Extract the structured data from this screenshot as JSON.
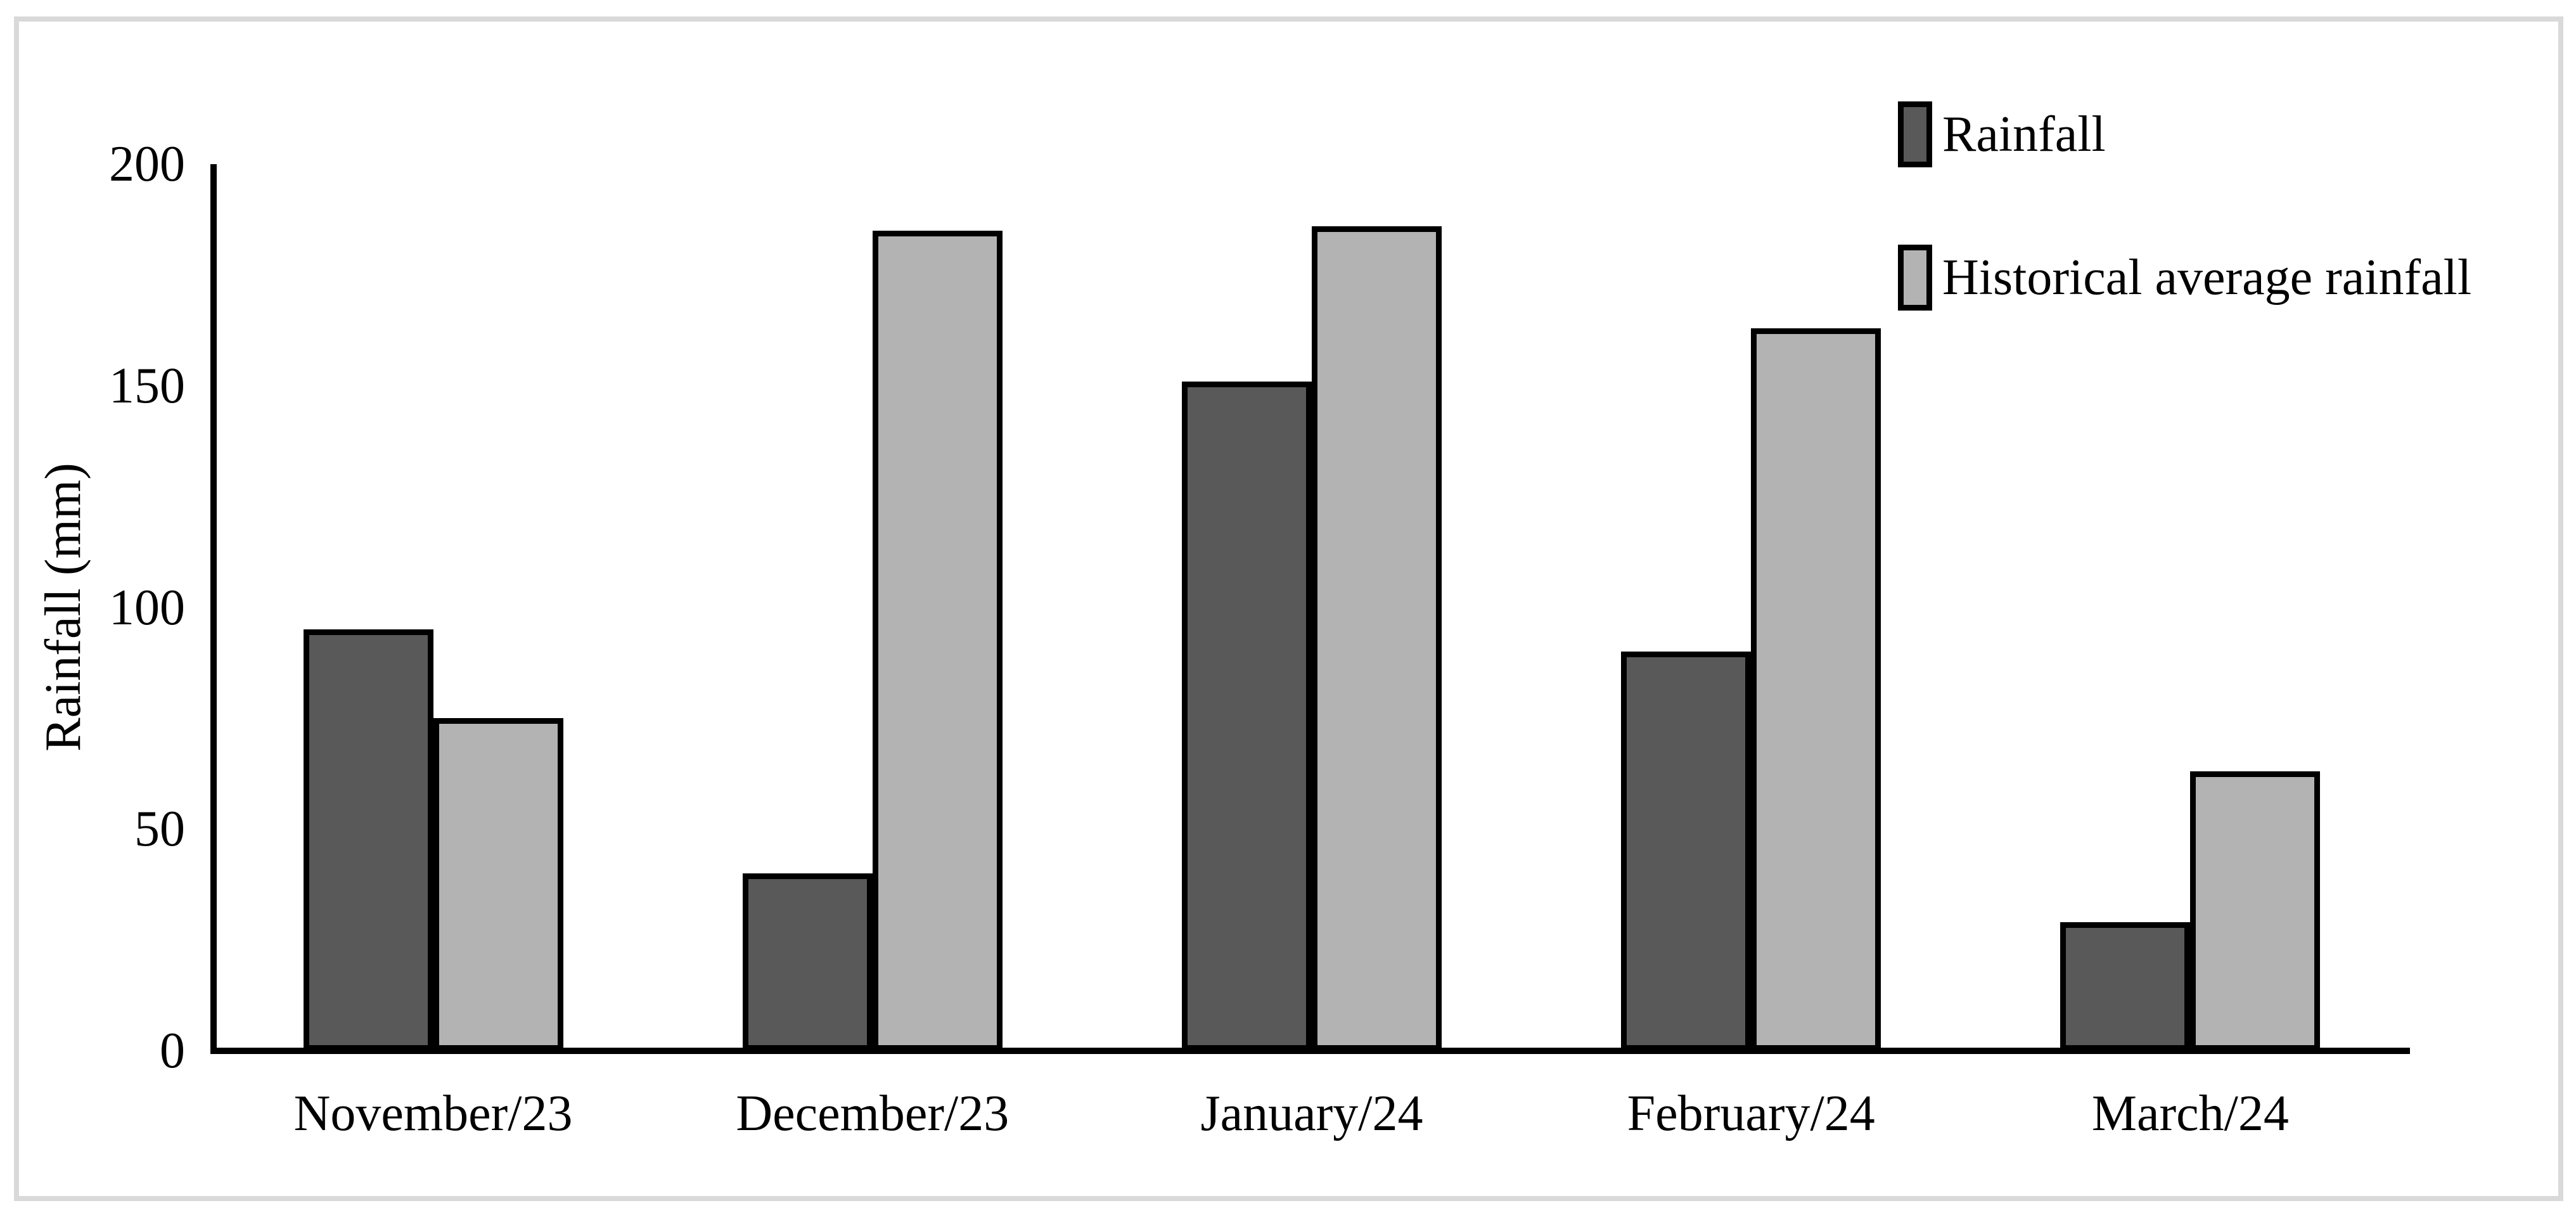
{
  "chart_data": {
    "type": "bar",
    "title": "",
    "categories": [
      "November/23",
      "December/23",
      "January/24",
      "February/24",
      "March/24"
    ],
    "series": [
      {
        "name": "Rainfall",
        "color": "#595959",
        "values": [
          95,
          40,
          151,
          90,
          29
        ]
      },
      {
        "name": "Historical average rainfall",
        "color": "#b3b3b3",
        "values": [
          75,
          185,
          186,
          163,
          63
        ]
      }
    ],
    "xlabel": "",
    "ylabel": "Rainfall (mm)",
    "yticks": [
      0,
      50,
      100,
      150,
      200
    ],
    "ylim": [
      0,
      200
    ],
    "grid": "off",
    "legend_position": "top-right",
    "bar_border_color": "#000000",
    "axis_color": "#000000",
    "figure_border_color": "#d9d9d9"
  }
}
